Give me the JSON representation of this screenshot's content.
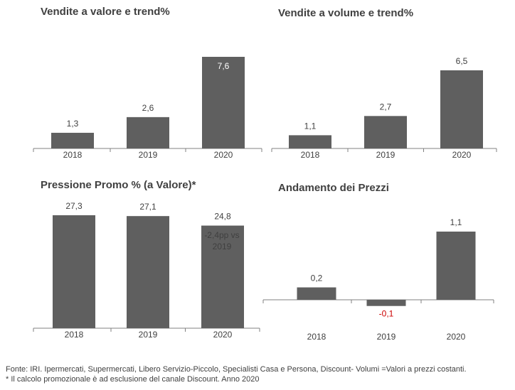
{
  "colors": {
    "bar": "#5f5f5f",
    "axis": "#808080",
    "text": "#404040",
    "label_light": "#ffffff",
    "negative": "#cc0000"
  },
  "chart_data": [
    {
      "type": "bar",
      "title": "Vendite a valore e trend%",
      "categories": [
        "2018",
        "2019",
        "2020"
      ],
      "values": [
        1.3,
        2.6,
        7.6
      ],
      "value_labels": [
        "1,3",
        "2,6",
        "7,6"
      ],
      "xlabel": "",
      "ylabel": "",
      "ylim": [
        0,
        7.6
      ],
      "grid": false
    },
    {
      "type": "bar",
      "title": "Vendite a volume e trend%",
      "categories": [
        "2018",
        "2019",
        "2020"
      ],
      "values": [
        1.1,
        2.7,
        6.5
      ],
      "value_labels": [
        "1,1",
        "2,7",
        "6,5"
      ],
      "xlabel": "",
      "ylabel": "",
      "ylim": [
        0,
        6.5
      ],
      "grid": false
    },
    {
      "type": "bar",
      "title": "Pressione Promo % (a Valore)*",
      "categories": [
        "2018",
        "2019",
        "2020"
      ],
      "values": [
        27.3,
        27.1,
        24.8
      ],
      "value_labels": [
        "27,3",
        "27,1",
        "24,8"
      ],
      "annotation": [
        "-2,4pp vs",
        "2019"
      ],
      "xlabel": "",
      "ylabel": "",
      "ylim": [
        24,
        27.3
      ],
      "grid": false
    },
    {
      "type": "bar",
      "title": "Andamento dei Prezzi",
      "categories": [
        "2018",
        "2019",
        "2020"
      ],
      "values": [
        0.2,
        -0.1,
        1.1
      ],
      "value_labels": [
        "0,2",
        "-0,1",
        "1,1"
      ],
      "xlabel": "",
      "ylabel": "",
      "ylim": [
        -0.1,
        1.1
      ],
      "grid": false
    }
  ],
  "footer": {
    "line1": "Fonte: IRI. Ipermercati, Supermercati, Libero Servizio-Piccolo, Specialisti Casa e Persona, Discount-  Volumi =Valori a prezzi costanti.",
    "line2": "* Il calcolo promozionale è ad esclusione del canale Discount.  Anno 2020"
  }
}
